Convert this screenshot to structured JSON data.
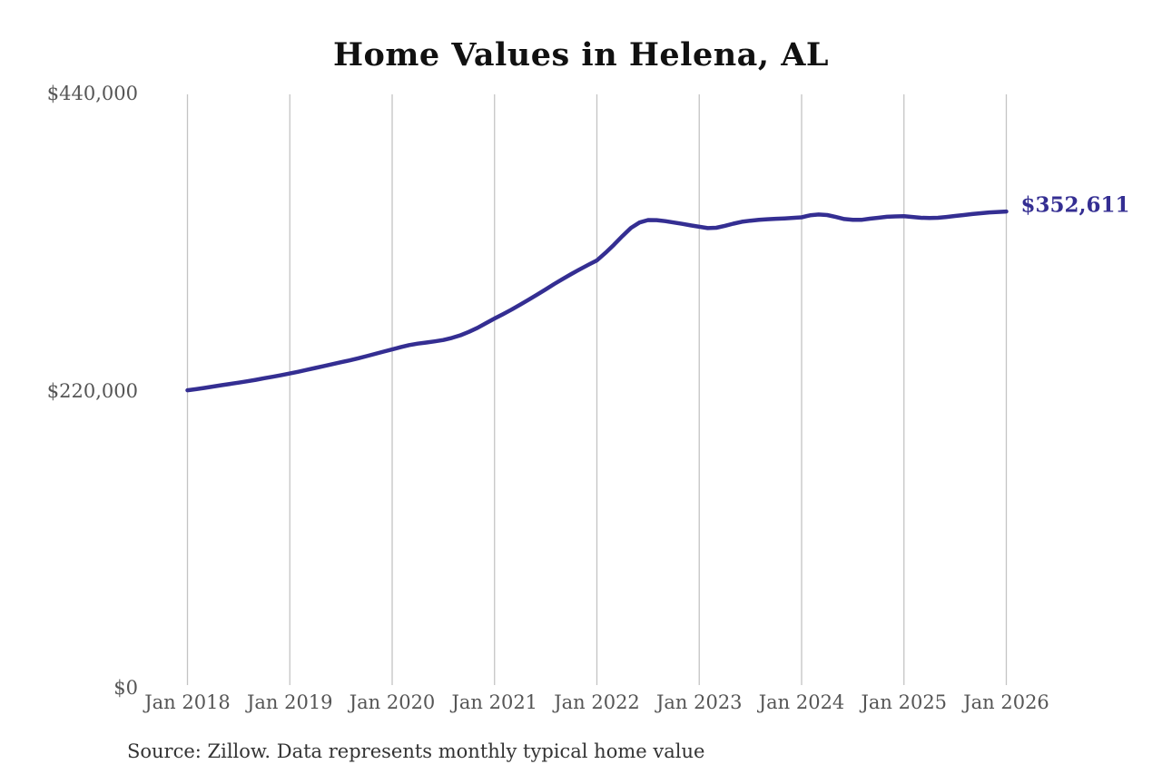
{
  "title": "Home Values in Helena, AL",
  "annotation": {
    "label": "$352,611"
  },
  "source": "Source: Zillow. Data represents monthly typical home value",
  "colors": {
    "background": "#ffffff",
    "line": "#342e92",
    "grid": "#c4c4c4",
    "axis_text": "#555555",
    "title_text": "#111111",
    "annotation_text": "#342e92",
    "source_text": "#333333"
  },
  "chart_data": {
    "type": "line",
    "title": "Home Values in Helena, AL",
    "xlabel": "",
    "ylabel": "",
    "ylim": [
      0,
      440000
    ],
    "grid": "vertical-only",
    "legend_position": "none",
    "y_ticks": [
      {
        "label": "$0",
        "value": 0
      },
      {
        "label": "$220,000",
        "value": 220000
      },
      {
        "label": "$440,000",
        "value": 440000
      }
    ],
    "x_tick_labels": [
      "Jan 2018",
      "Jan 2019",
      "Jan 2020",
      "Jan 2021",
      "Jan 2022",
      "Jan 2023",
      "Jan 2024",
      "Jan 2025",
      "Jan 2026"
    ],
    "months_per_tick": 12,
    "end_label": "$352,611",
    "end_value": 352611,
    "series": [
      {
        "name": "Monthly typical home value",
        "start": "Jan 2018",
        "end": "Jan 2026",
        "interval": "monthly",
        "values": [
          220300,
          221100,
          222000,
          223000,
          224000,
          225000,
          225900,
          226900,
          228000,
          229200,
          230300,
          231500,
          232700,
          234000,
          235400,
          236800,
          238200,
          239600,
          241000,
          242400,
          243900,
          245500,
          247200,
          248900,
          250500,
          252200,
          253700,
          254800,
          255600,
          256500,
          257500,
          259000,
          261000,
          263500,
          266500,
          270000,
          273400,
          276600,
          280000,
          283600,
          287300,
          291100,
          295000,
          298900,
          302700,
          306300,
          309800,
          313200,
          316400,
          322000,
          328000,
          334500,
          340500,
          344500,
          346300,
          346200,
          345500,
          344500,
          343500,
          342300,
          341300,
          340300,
          340600,
          342000,
          343600,
          345000,
          345800,
          346400,
          346900,
          347200,
          347500,
          347900,
          348300,
          349800,
          350400,
          350000,
          348600,
          347000,
          346400,
          346400,
          347300,
          348000,
          348700,
          349000,
          349100,
          348600,
          348000,
          347800,
          348000,
          348600,
          349300,
          350000,
          350700,
          351300,
          351900,
          352300,
          352611
        ]
      }
    ]
  }
}
